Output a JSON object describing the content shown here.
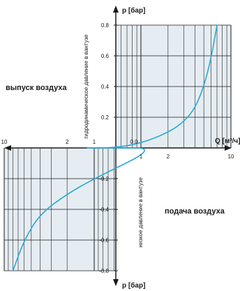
{
  "annotations": {
    "left_label": "выпуск воздуха",
    "right_label": "подача воздуха"
  },
  "chart_data": {
    "type": "line",
    "title": "",
    "x_axis": {
      "label": "Q [м³/ч]",
      "scale": "log",
      "range": [
        0.1,
        10
      ],
      "tick_labels": [
        "1",
        "2",
        "10"
      ],
      "negative_side_tick_labels": [
        "10",
        "1",
        "2"
      ]
    },
    "y_axis": {
      "label_top": "p [бар]",
      "label_bottom": "p [бар]",
      "range": [
        -0.8,
        0.8
      ],
      "tick_labels": [
        "0.8",
        "0.6",
        "0.4",
        "0.2",
        "-0.2",
        "-0.4",
        "-0.6",
        "-0.8"
      ],
      "positive_side_label": "гидродинамическое давление в вантузе",
      "negative_side_label": "низкое давление в вантузе"
    },
    "grid": true,
    "series": [
      {
        "color": "#29a9d6",
        "points_upper": [
          {
            "Q": 0.2,
            "p": 0.0
          },
          {
            "Q": 0.5,
            "p": 0.0
          },
          {
            "Q": 1.0,
            "p": 0.03
          },
          {
            "Q": 2.0,
            "p": 0.1
          },
          {
            "Q": 3.0,
            "p": 0.17
          },
          {
            "Q": 4.0,
            "p": 0.26
          },
          {
            "Q": 5.0,
            "p": 0.4
          },
          {
            "Q": 6.0,
            "p": 0.58
          },
          {
            "Q": 7.0,
            "p": 0.8
          }
        ],
        "points_lower": [
          {
            "Q": -0.2,
            "p": 0.0
          },
          {
            "Q": -1.0,
            "p": -0.2
          },
          {
            "Q": -2.0,
            "p": -0.3
          },
          {
            "Q": -4.0,
            "p": -0.43
          },
          {
            "Q": -6.0,
            "p": -0.6
          },
          {
            "Q": -8.0,
            "p": -0.8
          }
        ]
      }
    ],
    "colors": {
      "panel_fill": "#e6edf2",
      "grid": "#1a1a1a",
      "curve": "#29a9d6"
    }
  }
}
